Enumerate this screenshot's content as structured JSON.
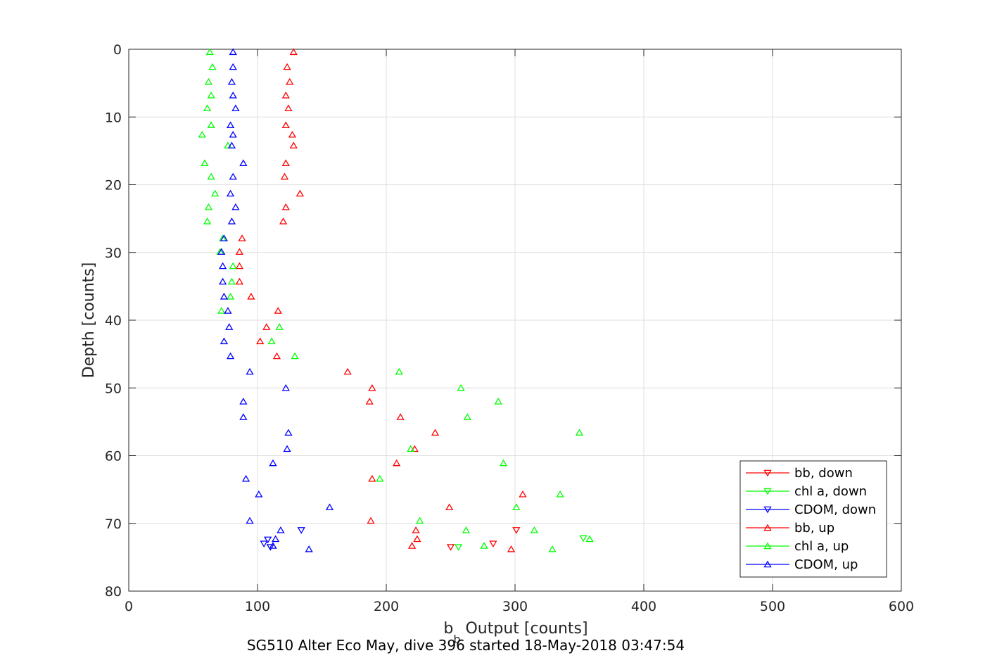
{
  "chart_data": {
    "type": "scatter",
    "xlabel_main": "b",
    "xlabel_sub": "b",
    "xlabel_rest": " Output [counts]",
    "ylabel": "Depth [counts]",
    "caption": "SG510 Alter Eco May, dive 396 started 18-May-2018 03:47:54",
    "xlim": [
      0,
      600
    ],
    "ylim": [
      0,
      80
    ],
    "y_reversed": true,
    "grid": true,
    "legend_position": "bottom-right",
    "x_ticks": [
      "0",
      "100",
      "200",
      "300",
      "400",
      "500",
      "600"
    ],
    "y_ticks": [
      "0",
      "10",
      "20",
      "30",
      "40",
      "50",
      "60",
      "70",
      "80"
    ],
    "series": [
      {
        "name": "bb, down",
        "color": "#ff0000",
        "marker": "triangle-down",
        "points": [
          [
            250,
            73.5
          ],
          [
            283,
            73.0
          ],
          [
            301,
            71.0
          ]
        ]
      },
      {
        "name": "chl a, down",
        "color": "#00ff00",
        "marker": "triangle-down",
        "points": [
          [
            256,
            73.5
          ],
          [
            353,
            72.2
          ]
        ]
      },
      {
        "name": "CDOM, down",
        "color": "#0000ff",
        "marker": "triangle-down",
        "points": [
          [
            105,
            73.0
          ],
          [
            108,
            72.4
          ],
          [
            110,
            73.5
          ],
          [
            134,
            71.0
          ]
        ]
      },
      {
        "name": "bb, up",
        "color": "#ff0000",
        "marker": "triangle-up",
        "points": [
          [
            128,
            0.4
          ],
          [
            123,
            2.6
          ],
          [
            125,
            4.8
          ],
          [
            122,
            6.8
          ],
          [
            124,
            8.7
          ],
          [
            122,
            11.2
          ],
          [
            127,
            12.6
          ],
          [
            128,
            14.2
          ],
          [
            122,
            16.8
          ],
          [
            121,
            18.8
          ],
          [
            133,
            21.3
          ],
          [
            122,
            23.3
          ],
          [
            120,
            25.4
          ],
          [
            88,
            27.9
          ],
          [
            86,
            29.9
          ],
          [
            86,
            32.0
          ],
          [
            86,
            34.3
          ],
          [
            95,
            36.5
          ],
          [
            116,
            38.6
          ],
          [
            107,
            41.0
          ],
          [
            102,
            43.1
          ],
          [
            115,
            45.3
          ],
          [
            170,
            47.6
          ],
          [
            189,
            50.0
          ],
          [
            187,
            52.0
          ],
          [
            211,
            54.3
          ],
          [
            238,
            56.6
          ],
          [
            222,
            59.0
          ],
          [
            208,
            61.1
          ],
          [
            189,
            63.4
          ],
          [
            306,
            65.7
          ],
          [
            249,
            67.6
          ],
          [
            188,
            69.6
          ],
          [
            223,
            71.0
          ],
          [
            224,
            72.3
          ],
          [
            220,
            73.3
          ],
          [
            297,
            73.8
          ]
        ]
      },
      {
        "name": "chl a, up",
        "color": "#00ff00",
        "marker": "triangle-up",
        "points": [
          [
            63,
            0.4
          ],
          [
            65,
            2.6
          ],
          [
            62,
            4.8
          ],
          [
            64,
            6.8
          ],
          [
            61,
            8.7
          ],
          [
            64,
            11.2
          ],
          [
            57,
            12.6
          ],
          [
            77,
            14.2
          ],
          [
            59,
            16.8
          ],
          [
            64,
            18.8
          ],
          [
            67,
            21.3
          ],
          [
            62,
            23.3
          ],
          [
            61,
            25.4
          ],
          [
            73,
            27.9
          ],
          [
            71,
            29.9
          ],
          [
            81,
            32.0
          ],
          [
            80,
            34.3
          ],
          [
            79,
            36.5
          ],
          [
            72,
            38.6
          ],
          [
            117,
            41.0
          ],
          [
            111,
            43.1
          ],
          [
            129,
            45.3
          ],
          [
            210,
            47.6
          ],
          [
            258,
            50.0
          ],
          [
            287,
            52.0
          ],
          [
            263,
            54.3
          ],
          [
            350,
            56.6
          ],
          [
            219,
            59.0
          ],
          [
            291,
            61.1
          ],
          [
            195,
            63.4
          ],
          [
            335,
            65.7
          ],
          [
            301,
            67.6
          ],
          [
            226,
            69.6
          ],
          [
            262,
            71.0
          ],
          [
            315,
            71.0
          ],
          [
            358,
            72.3
          ],
          [
            276,
            73.3
          ],
          [
            329,
            73.8
          ]
        ]
      },
      {
        "name": "CDOM, up",
        "color": "#0000ff",
        "marker": "triangle-up",
        "points": [
          [
            81,
            0.4
          ],
          [
            81,
            2.6
          ],
          [
            80,
            4.8
          ],
          [
            81,
            6.8
          ],
          [
            83,
            8.7
          ],
          [
            79,
            11.2
          ],
          [
            81,
            12.6
          ],
          [
            80,
            14.2
          ],
          [
            89,
            16.8
          ],
          [
            81,
            18.8
          ],
          [
            79,
            21.3
          ],
          [
            83,
            23.3
          ],
          [
            80,
            25.4
          ],
          [
            74,
            27.9
          ],
          [
            72,
            29.9
          ],
          [
            73,
            32.0
          ],
          [
            73,
            34.3
          ],
          [
            74,
            36.5
          ],
          [
            77,
            38.6
          ],
          [
            78,
            41.0
          ],
          [
            74,
            43.1
          ],
          [
            79,
            45.3
          ],
          [
            94,
            47.6
          ],
          [
            122,
            50.0
          ],
          [
            89,
            52.0
          ],
          [
            89,
            54.3
          ],
          [
            124,
            56.6
          ],
          [
            123,
            59.0
          ],
          [
            112,
            61.1
          ],
          [
            91,
            63.4
          ],
          [
            101,
            65.7
          ],
          [
            156,
            67.6
          ],
          [
            94,
            69.6
          ],
          [
            118,
            71.0
          ],
          [
            114,
            72.3
          ],
          [
            112,
            73.3
          ],
          [
            140,
            73.8
          ]
        ]
      }
    ]
  }
}
